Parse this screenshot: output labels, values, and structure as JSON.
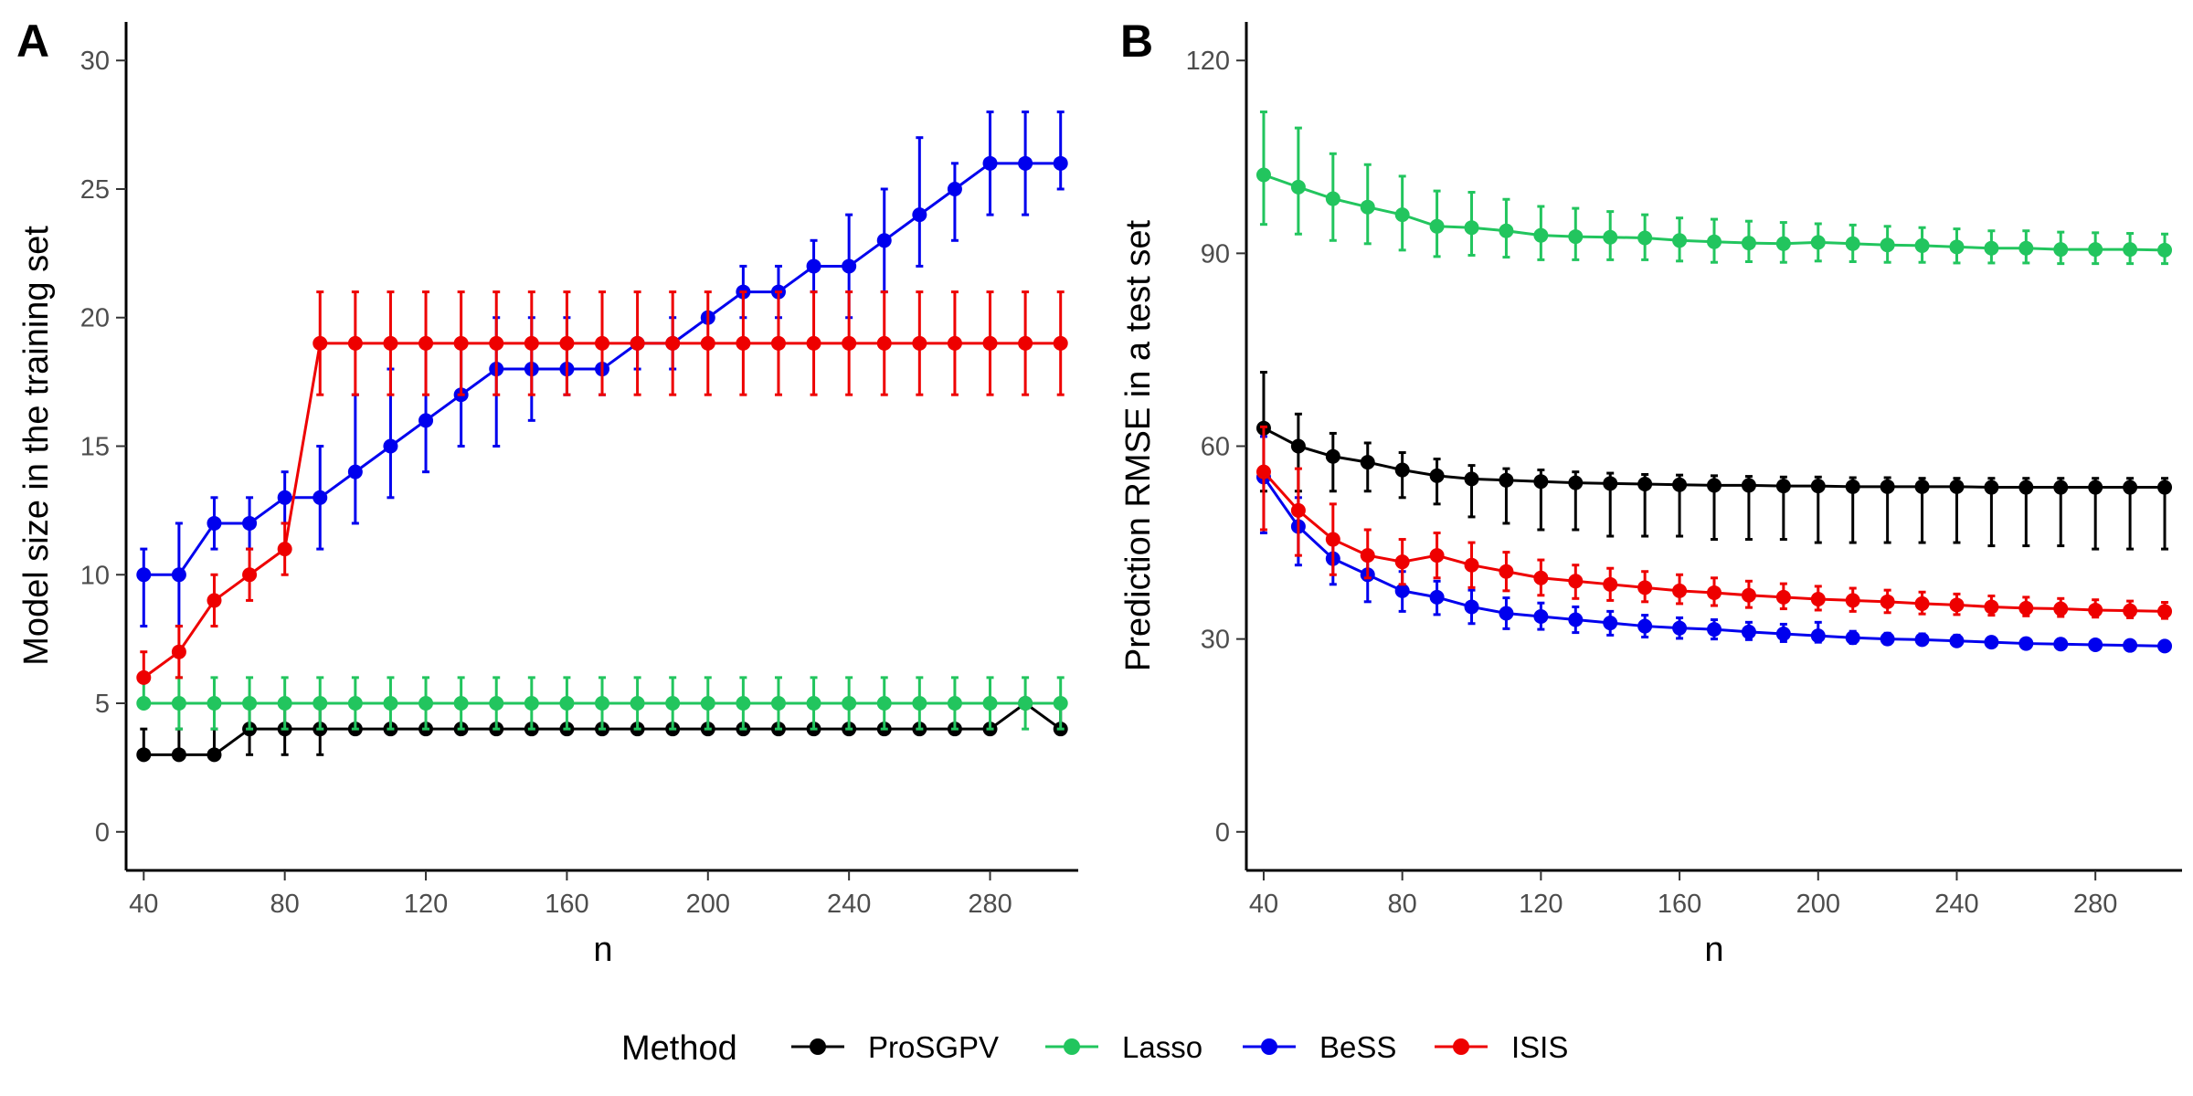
{
  "colors": {
    "ProSGPV": "#000000",
    "Lasso": "#22c55e",
    "BeSS": "#0000ee",
    "ISIS": "#ee0000"
  },
  "legend": {
    "title": "Method",
    "items": [
      "ProSGPV",
      "Lasso",
      "BeSS",
      "ISIS"
    ]
  },
  "chart_data": [
    {
      "type": "line",
      "panel": "A",
      "xlabel": "n",
      "ylabel": "Model size in the training set",
      "xlim": [
        35,
        305
      ],
      "ylim": [
        -1.5,
        31.5
      ],
      "xticks": [
        40,
        80,
        120,
        160,
        200,
        240,
        280
      ],
      "yticks": [
        0,
        5,
        10,
        15,
        20,
        25,
        30
      ],
      "grid": false,
      "x": [
        40,
        50,
        60,
        70,
        80,
        90,
        100,
        110,
        120,
        130,
        140,
        150,
        160,
        170,
        180,
        190,
        200,
        210,
        220,
        230,
        240,
        250,
        260,
        270,
        280,
        290,
        300
      ],
      "series": [
        {
          "name": "ProSGPV",
          "values": [
            3,
            3,
            3,
            4,
            4,
            4,
            4,
            4,
            4,
            4,
            4,
            4,
            4,
            4,
            4,
            4,
            4,
            4,
            4,
            4,
            4,
            4,
            4,
            4,
            4,
            5,
            4
          ],
          "lower": [
            3,
            3,
            3,
            3,
            3,
            3,
            4,
            4,
            4,
            4,
            4,
            4,
            4,
            4,
            4,
            4,
            4,
            4,
            4,
            4,
            4,
            4,
            4,
            4,
            4,
            5,
            4
          ],
          "upper": [
            4,
            4,
            4,
            5,
            5,
            5,
            4,
            4,
            4,
            4,
            4,
            4,
            4,
            4,
            4,
            4,
            4,
            4,
            4,
            4,
            4,
            4,
            4,
            4,
            4,
            5,
            5
          ]
        },
        {
          "name": "Lasso",
          "values": [
            5,
            5,
            5,
            5,
            5,
            5,
            5,
            5,
            5,
            5,
            5,
            5,
            5,
            5,
            5,
            5,
            5,
            5,
            5,
            5,
            5,
            5,
            5,
            5,
            5,
            5,
            5
          ],
          "lower": [
            5,
            4,
            4,
            4,
            4,
            4,
            4,
            4,
            4,
            4,
            4,
            4,
            4,
            4,
            4,
            4,
            4,
            4,
            4,
            4,
            4,
            4,
            4,
            4,
            4,
            4,
            4
          ],
          "upper": [
            6,
            6,
            6,
            6,
            6,
            6,
            6,
            6,
            6,
            6,
            6,
            6,
            6,
            6,
            6,
            6,
            6,
            6,
            6,
            6,
            6,
            6,
            6,
            6,
            6,
            6,
            6
          ]
        },
        {
          "name": "BeSS",
          "values": [
            10,
            10,
            12,
            12,
            13,
            13,
            14,
            15,
            16,
            17,
            18,
            18,
            18,
            18,
            19,
            19,
            20,
            21,
            21,
            22,
            22,
            23,
            24,
            25,
            26,
            26,
            26
          ],
          "lower": [
            8,
            8,
            11,
            11,
            12,
            11,
            12,
            13,
            14,
            15,
            15,
            16,
            17,
            17,
            18,
            18,
            20,
            20,
            20,
            21,
            20,
            21,
            22,
            23,
            24,
            24,
            25
          ],
          "upper": [
            11,
            12,
            13,
            13,
            14,
            15,
            17,
            18,
            19,
            19,
            20,
            20,
            20,
            19,
            19,
            20,
            20,
            22,
            22,
            23,
            24,
            25,
            27,
            26,
            28,
            28,
            28
          ]
        },
        {
          "name": "ISIS",
          "values": [
            6,
            7,
            9,
            10,
            11,
            19,
            19,
            19,
            19,
            19,
            19,
            19,
            19,
            19,
            19,
            19,
            19,
            19,
            19,
            19,
            19,
            19,
            19,
            19,
            19,
            19,
            19
          ],
          "lower": [
            6,
            6,
            8,
            9,
            10,
            17,
            17,
            17,
            17,
            17,
            17,
            17,
            17,
            17,
            17,
            17,
            17,
            17,
            17,
            17,
            17,
            17,
            17,
            17,
            17,
            17,
            17
          ],
          "upper": [
            7,
            8,
            10,
            11,
            12,
            21,
            21,
            21,
            21,
            21,
            21,
            21,
            21,
            21,
            21,
            21,
            21,
            21,
            21,
            21,
            21,
            21,
            21,
            21,
            21,
            21,
            21
          ]
        }
      ]
    },
    {
      "type": "line",
      "panel": "B",
      "xlabel": "n",
      "ylabel": "Prediction RMSE in a test set",
      "xlim": [
        35,
        305
      ],
      "ylim": [
        -6,
        126
      ],
      "xticks": [
        40,
        80,
        120,
        160,
        200,
        240,
        280
      ],
      "yticks": [
        0,
        30,
        60,
        90,
        120
      ],
      "grid": false,
      "x": [
        40,
        50,
        60,
        70,
        80,
        90,
        100,
        110,
        120,
        130,
        140,
        150,
        160,
        170,
        180,
        190,
        200,
        210,
        220,
        230,
        240,
        250,
        260,
        270,
        280,
        290,
        300
      ],
      "series": [
        {
          "name": "ProSGPV",
          "values": [
            62.8,
            60,
            58.4,
            57.5,
            56.3,
            55.4,
            54.9,
            54.7,
            54.5,
            54.3,
            54.2,
            54.1,
            54,
            53.9,
            53.9,
            53.8,
            53.8,
            53.7,
            53.7,
            53.7,
            53.7,
            53.6,
            53.6,
            53.6,
            53.6,
            53.6,
            53.6
          ],
          "lower": [
            53,
            53,
            53,
            53,
            52,
            51,
            49,
            48,
            47,
            47,
            46,
            46,
            46,
            45.5,
            45.5,
            45.5,
            45,
            45,
            45,
            45,
            45,
            44.5,
            44.5,
            44.5,
            44,
            44,
            44
          ],
          "upper": [
            71.5,
            65,
            62,
            60.5,
            59,
            58,
            57,
            56.5,
            56.3,
            56,
            55.8,
            55.6,
            55.5,
            55.4,
            55.3,
            55.2,
            55.2,
            55.1,
            55.1,
            55,
            55,
            55,
            55,
            55,
            55,
            55,
            55
          ]
        },
        {
          "name": "Lasso",
          "values": [
            102.2,
            100.3,
            98.5,
            97.2,
            96,
            94.2,
            94,
            93.5,
            92.8,
            92.6,
            92.5,
            92.4,
            92,
            91.8,
            91.6,
            91.5,
            91.7,
            91.5,
            91.3,
            91.2,
            91,
            90.8,
            90.8,
            90.6,
            90.6,
            90.6,
            90.5
          ],
          "lower": [
            94.5,
            93,
            92,
            91.5,
            90.5,
            89.5,
            89.7,
            89.4,
            89,
            89,
            89,
            89,
            88.8,
            88.6,
            88.7,
            88.6,
            88.8,
            88.7,
            88.6,
            88.6,
            88.5,
            88.5,
            88.5,
            88.4,
            88.4,
            88.4,
            88.4
          ],
          "upper": [
            112,
            109.5,
            105.5,
            103.8,
            102,
            99.7,
            99.5,
            98.4,
            97.3,
            97,
            96.5,
            96,
            95.5,
            95.3,
            95,
            94.8,
            94.6,
            94.4,
            94.2,
            94,
            93.8,
            93.5,
            93.5,
            93.3,
            93.2,
            93.1,
            93
          ]
        },
        {
          "name": "BeSS",
          "values": [
            55.2,
            47.5,
            42.5,
            40,
            37.5,
            36.5,
            35,
            34,
            33.5,
            33,
            32.5,
            32,
            31.7,
            31.5,
            31.1,
            30.8,
            30.5,
            30.2,
            30,
            29.9,
            29.7,
            29.5,
            29.3,
            29.2,
            29.1,
            29,
            28.9
          ],
          "lower": [
            46.5,
            41.5,
            38.5,
            35.8,
            34.3,
            33.8,
            32.4,
            31.6,
            31.5,
            31,
            30.6,
            30.3,
            30.1,
            30,
            29.9,
            29.6,
            29.5,
            29.3,
            29.2,
            29.1,
            29,
            28.8,
            28.7,
            28.6,
            28.5,
            28.4,
            28.3
          ],
          "upper": [
            61.5,
            52,
            46,
            42.5,
            40.5,
            39,
            37.6,
            36.4,
            35.6,
            35,
            34.3,
            33.7,
            33.3,
            33,
            32.6,
            32.3,
            32.6,
            31.2,
            30.9,
            30.8,
            30.6,
            30.3,
            30.1,
            30,
            29.8,
            29.7,
            29.6
          ]
        },
        {
          "name": "ISIS",
          "values": [
            56,
            50,
            45.5,
            43,
            42,
            43,
            41.5,
            40.5,
            39.5,
            39,
            38.5,
            38,
            37.5,
            37.2,
            36.8,
            36.5,
            36.2,
            36,
            35.8,
            35.5,
            35.3,
            35,
            34.8,
            34.7,
            34.5,
            34.4,
            34.3
          ],
          "lower": [
            47,
            43,
            40,
            39.5,
            38.5,
            39.5,
            38,
            37.5,
            36.8,
            36.3,
            36,
            35.8,
            35.5,
            35.2,
            34.9,
            34.7,
            34.5,
            34.3,
            34.1,
            33.9,
            33.8,
            33.7,
            33.6,
            33.5,
            33.4,
            33.3,
            33.2
          ],
          "upper": [
            63,
            56.5,
            51,
            47,
            45.5,
            46.5,
            45,
            43.5,
            42.3,
            41.5,
            41,
            40.5,
            40,
            39.5,
            39,
            38.6,
            38.2,
            37.9,
            37.6,
            37.3,
            37,
            36.7,
            36.5,
            36.3,
            36.1,
            35.9,
            35.7
          ]
        }
      ]
    }
  ]
}
